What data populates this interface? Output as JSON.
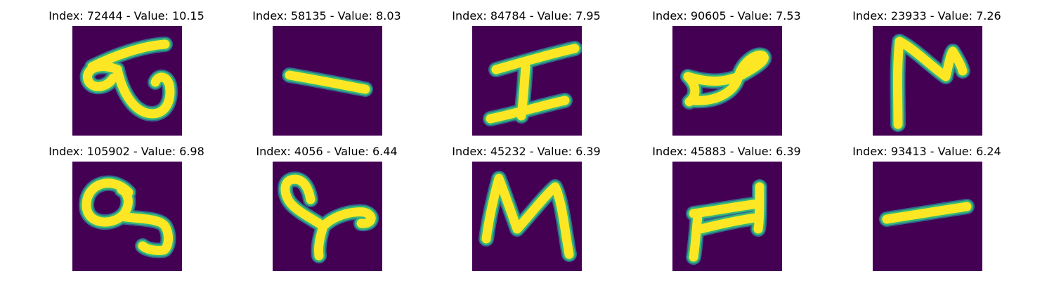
{
  "colors": {
    "background": "#440154",
    "stroke_core": "#fde725",
    "stroke_edge": "#35b779",
    "stroke_halo": "#31688e"
  },
  "panels": [
    {
      "title": "Index: 72444 - Value: 10.15",
      "index": 72444,
      "value": 10.15,
      "glyph": "loop-with-hook"
    },
    {
      "title": "Index: 58135 - Value: 8.03",
      "index": 58135,
      "value": 8.03,
      "glyph": "short-slanted-dash"
    },
    {
      "title": "Index: 84784 - Value: 7.95",
      "index": 84784,
      "value": 7.95,
      "glyph": "capital-i"
    },
    {
      "title": "Index: 90605 - Value: 7.53",
      "index": 90605,
      "value": 7.53,
      "glyph": "fish-loop"
    },
    {
      "title": "Index: 23933 - Value: 7.26",
      "index": 23933,
      "value": 7.26,
      "glyph": "zigzag-z"
    },
    {
      "title": "Index: 105902 - Value: 6.98",
      "index": 105902,
      "value": 6.98,
      "glyph": "loop-with-tail"
    },
    {
      "title": "Index: 4056 - Value: 6.44",
      "index": 4056,
      "value": 6.44,
      "glyph": "loop-y-shape"
    },
    {
      "title": "Index: 45232 - Value: 6.39",
      "index": 45232,
      "value": 6.39,
      "glyph": "wavy-n"
    },
    {
      "title": "Index: 45883 - Value: 6.39",
      "index": 45883,
      "value": 6.39,
      "glyph": "thick-h"
    },
    {
      "title": "Index: 93413 - Value: 6.24",
      "index": 93413,
      "value": 6.24,
      "glyph": "thick-dash"
    }
  ]
}
